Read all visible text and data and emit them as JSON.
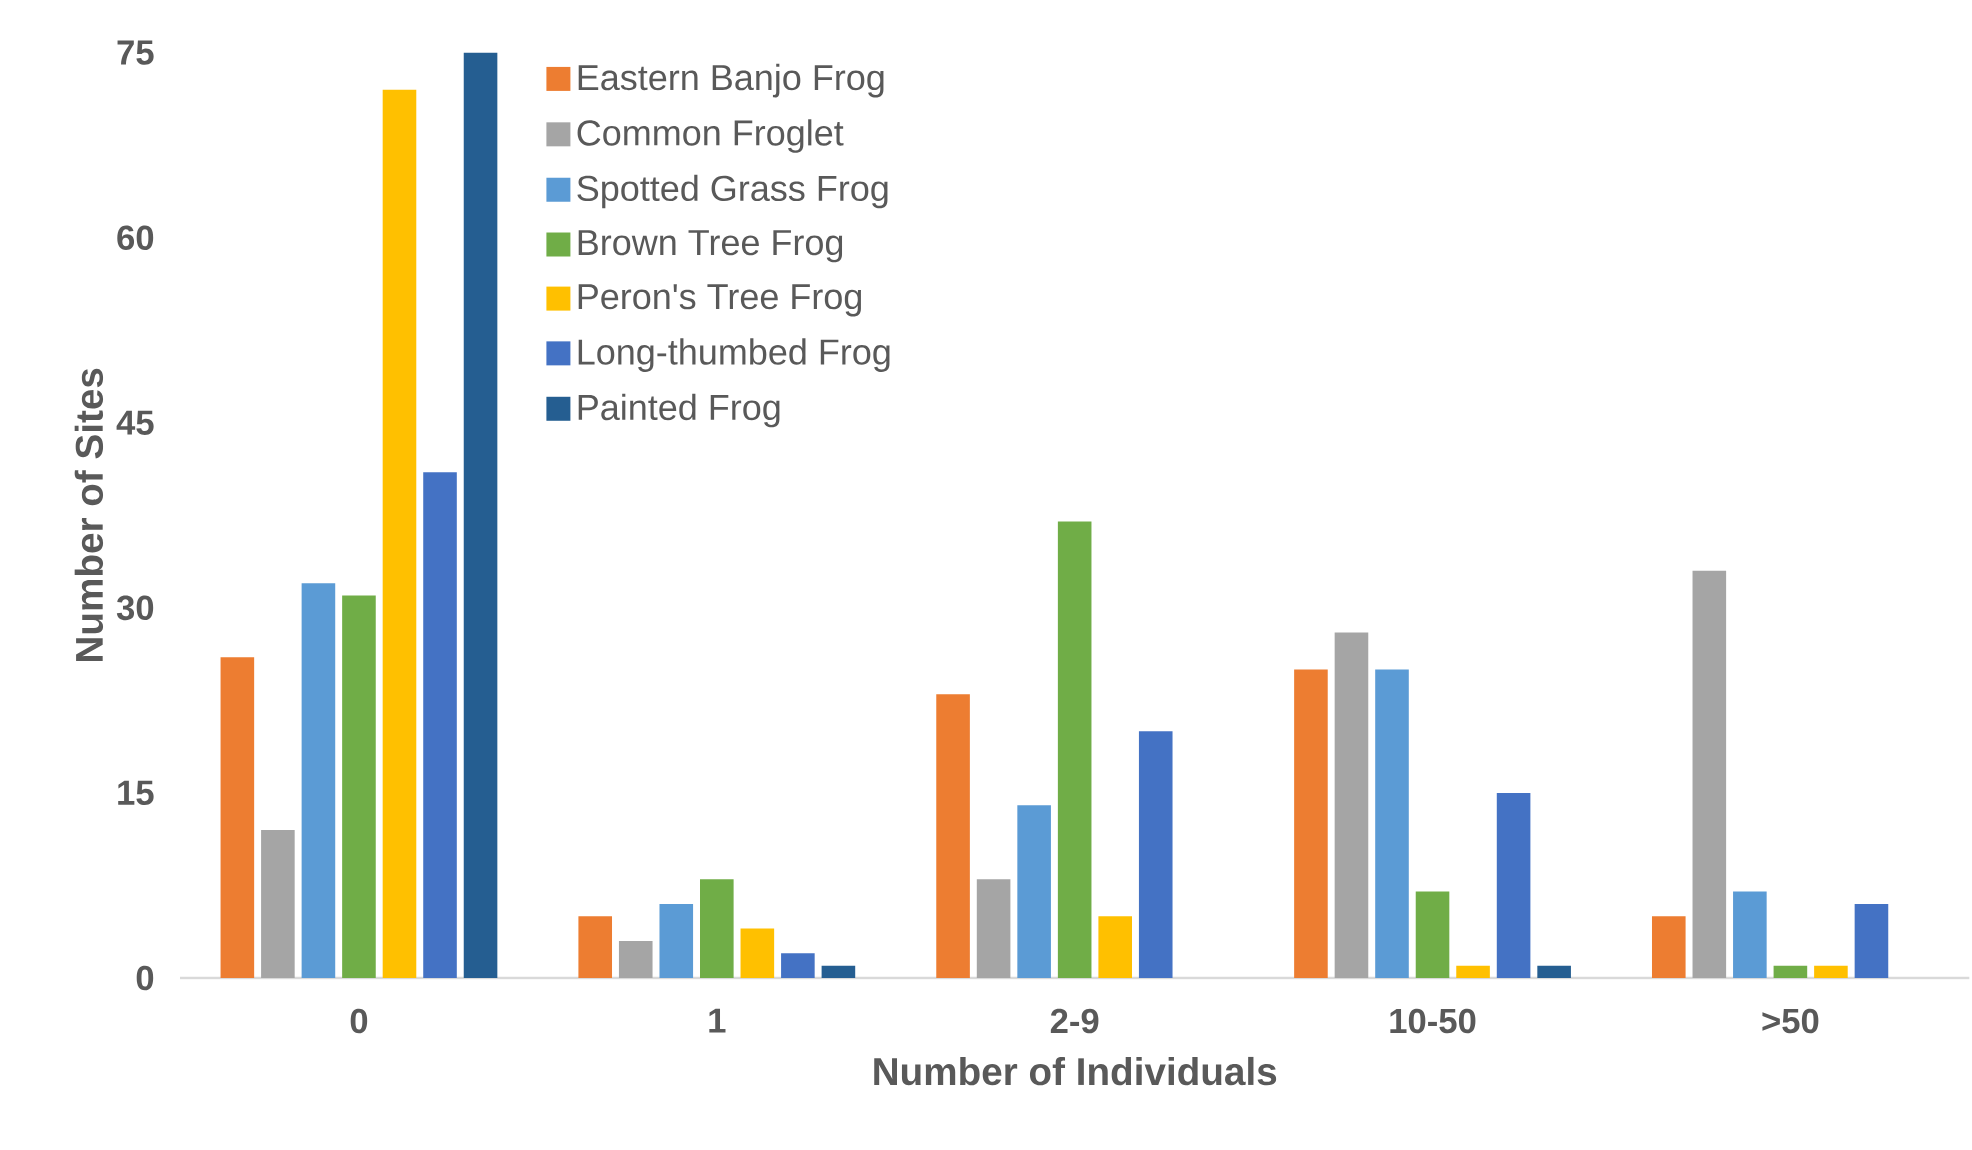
{
  "chart_data": {
    "type": "bar",
    "xlabel": "Number of Individuals",
    "ylabel": "Number of Sites",
    "categories": [
      "0",
      "1",
      "2-9",
      "10-50",
      ">50"
    ],
    "series": [
      {
        "name": "Eastern Banjo Frog",
        "color": "#ed7d31",
        "values": [
          26,
          5,
          23,
          25,
          5
        ]
      },
      {
        "name": "Common Froglet",
        "color": "#a5a5a5",
        "values": [
          12,
          3,
          8,
          28,
          33
        ]
      },
      {
        "name": "Spotted Grass Frog",
        "color": "#5b9bd5",
        "values": [
          32,
          6,
          14,
          25,
          7
        ]
      },
      {
        "name": "Brown Tree Frog",
        "color": "#70ad47",
        "values": [
          31,
          8,
          37,
          7,
          1
        ]
      },
      {
        "name": "Peron's Tree Frog",
        "color": "#ffc000",
        "values": [
          72,
          4,
          5,
          1,
          1
        ]
      },
      {
        "name": "Long-thumbed Frog",
        "color": "#4472c4",
        "values": [
          41,
          2,
          20,
          15,
          6
        ]
      },
      {
        "name": "Painted Frog",
        "color": "#255e91",
        "values": [
          75,
          1,
          0,
          1,
          0
        ]
      }
    ],
    "ylim": [
      0,
      75
    ],
    "yticks": [
      0,
      15,
      30,
      45,
      60,
      75
    ],
    "grid": false,
    "legend": "top left"
  }
}
